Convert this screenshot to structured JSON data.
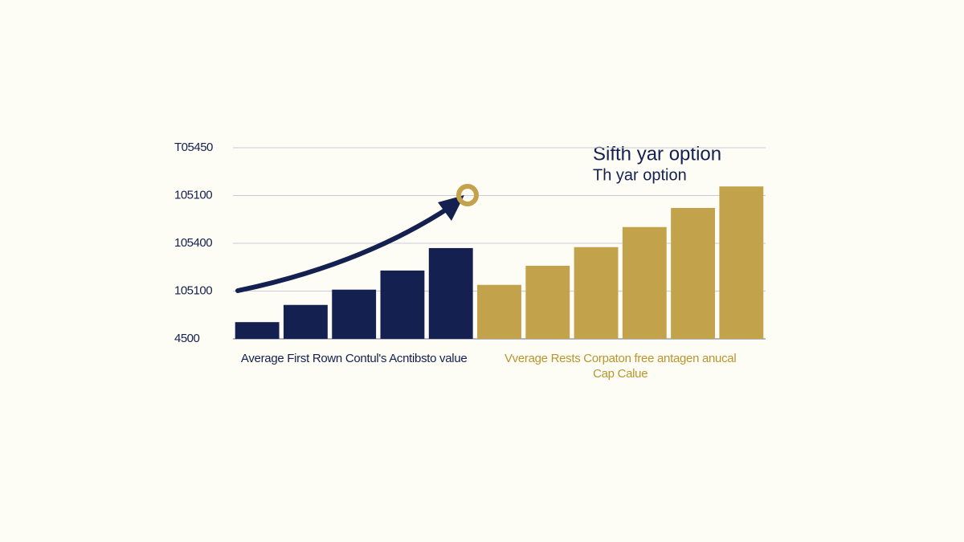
{
  "chart_data": {
    "type": "bar",
    "annotations": [
      "Sifth yar option",
      "Th yar option"
    ],
    "categories": [
      null,
      null,
      null,
      null,
      null,
      null,
      null,
      null,
      null,
      null,
      null
    ],
    "series": [
      {
        "name": "Average First Rown Contul's Acntibsto value",
        "color": "#14204f",
        "values": [
          0.35,
          0.71,
          1.03,
          1.43,
          1.9,
          null,
          null,
          null,
          null,
          null,
          null
        ]
      },
      {
        "name": "Vverage Rests Corpaton free antagen anucal Cap Calue",
        "color": "#c2a24a",
        "values": [
          null,
          null,
          null,
          null,
          null,
          1.13,
          1.53,
          1.92,
          2.34,
          2.74,
          3.19
        ]
      }
    ],
    "ylim": [
      0,
      4
    ],
    "yticks": [
      {
        "value": 0,
        "label": "4500"
      },
      {
        "value": 1,
        "label": "105100"
      },
      {
        "value": 2,
        "label": "105400"
      },
      {
        "value": 3,
        "label": "105100"
      },
      {
        "value": 4,
        "label": "T05450"
      }
    ],
    "grid": true
  }
}
